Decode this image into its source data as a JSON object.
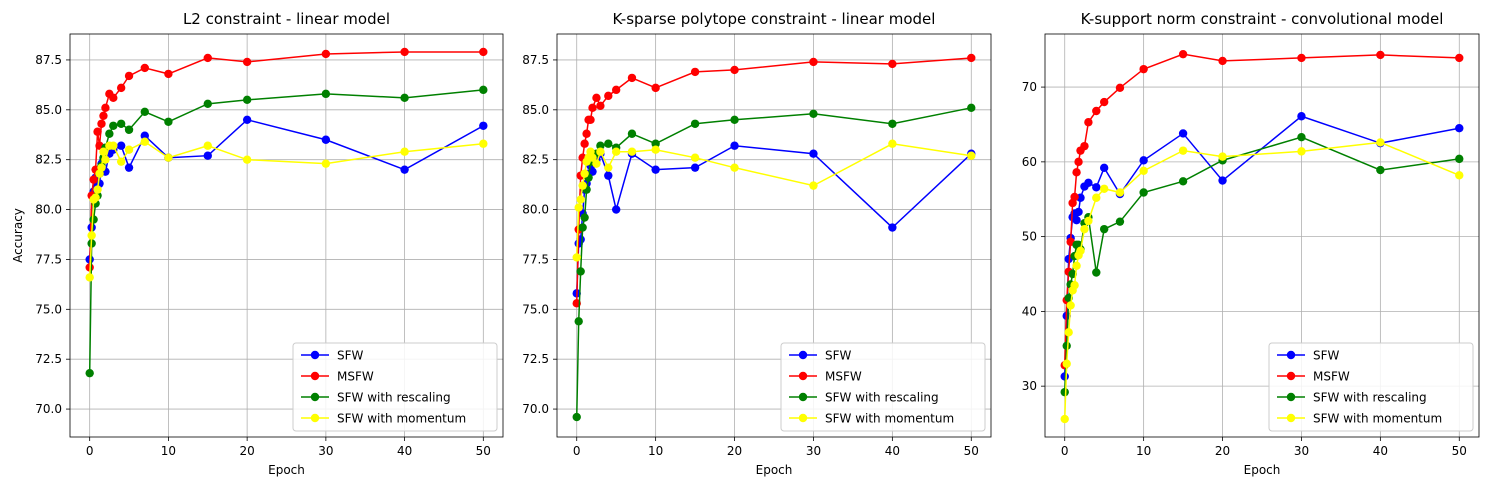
{
  "colors": {
    "SFW": "#0000ff",
    "MSFW": "#ff0000",
    "SFW with rescaling": "#008000",
    "SFW with momentum": "#ffff00",
    "grid": "#b0b0b0"
  },
  "chart_data": [
    {
      "type": "line",
      "title": "L2 constraint - linear model",
      "xlabel": "Epoch",
      "ylabel": "Accuracy",
      "xlim": [
        -2.5,
        52.5
      ],
      "ylim": [
        68.6,
        88.8
      ],
      "xticks": [
        0,
        10,
        20,
        30,
        40,
        50
      ],
      "yticks": [
        70.0,
        72.5,
        75.0,
        77.5,
        80.0,
        82.5,
        85.0,
        87.5
      ],
      "grid": true,
      "legend": "lower-right",
      "series": [
        {
          "name": "SFW",
          "points": [
            [
              0,
              77.5
            ],
            [
              0.25,
              79.1
            ],
            [
              0.5,
              80.9
            ],
            [
              0.75,
              81.6
            ],
            [
              1,
              81.2
            ],
            [
              1.25,
              81.3
            ],
            [
              1.5,
              82.3
            ],
            [
              1.75,
              82.5
            ],
            [
              2,
              81.9
            ],
            [
              2.5,
              82.8
            ],
            [
              3,
              83.0
            ],
            [
              4,
              83.2
            ],
            [
              5,
              82.1
            ],
            [
              7,
              83.7
            ],
            [
              10,
              82.6
            ],
            [
              15,
              82.7
            ],
            [
              20,
              84.5
            ],
            [
              30,
              83.5
            ],
            [
              40,
              82.0
            ],
            [
              50,
              84.2
            ]
          ]
        },
        {
          "name": "MSFW",
          "points": [
            [
              0,
              77.1
            ],
            [
              0.25,
              80.7
            ],
            [
              0.5,
              81.5
            ],
            [
              0.75,
              82.0
            ],
            [
              1,
              83.9
            ],
            [
              1.25,
              83.2
            ],
            [
              1.5,
              84.3
            ],
            [
              1.75,
              84.7
            ],
            [
              2,
              85.1
            ],
            [
              2.5,
              85.8
            ],
            [
              3,
              85.6
            ],
            [
              4,
              86.1
            ],
            [
              5,
              86.7
            ],
            [
              7,
              87.1
            ],
            [
              10,
              86.8
            ],
            [
              15,
              87.6
            ],
            [
              20,
              87.4
            ],
            [
              30,
              87.8
            ],
            [
              40,
              87.9
            ],
            [
              50,
              87.9
            ]
          ]
        },
        {
          "name": "SFW with rescaling",
          "points": [
            [
              0,
              71.8
            ],
            [
              0.25,
              78.3
            ],
            [
              0.5,
              79.5
            ],
            [
              0.75,
              80.3
            ],
            [
              1,
              80.7
            ],
            [
              1.25,
              81.8
            ],
            [
              1.5,
              82.2
            ],
            [
              1.75,
              82.6
            ],
            [
              2,
              83.1
            ],
            [
              2.5,
              83.8
            ],
            [
              3,
              84.2
            ],
            [
              4,
              84.3
            ],
            [
              5,
              84.0
            ],
            [
              7,
              84.9
            ],
            [
              10,
              84.4
            ],
            [
              15,
              85.3
            ],
            [
              20,
              85.5
            ],
            [
              30,
              85.8
            ],
            [
              40,
              85.6
            ],
            [
              50,
              86.0
            ]
          ]
        },
        {
          "name": "SFW with momentum",
          "points": [
            [
              0,
              76.6
            ],
            [
              0.25,
              78.7
            ],
            [
              0.5,
              80.5
            ],
            [
              0.75,
              80.6
            ],
            [
              1,
              81.0
            ],
            [
              1.25,
              81.8
            ],
            [
              1.5,
              82.1
            ],
            [
              1.75,
              82.9
            ],
            [
              2,
              82.5
            ],
            [
              2.5,
              83.2
            ],
            [
              3,
              83.2
            ],
            [
              4,
              82.4
            ],
            [
              5,
              83.0
            ],
            [
              7,
              83.4
            ],
            [
              10,
              82.6
            ],
            [
              15,
              83.2
            ],
            [
              20,
              82.5
            ],
            [
              30,
              82.3
            ],
            [
              40,
              82.9
            ],
            [
              50,
              83.3
            ]
          ]
        }
      ]
    },
    {
      "type": "line",
      "title": "K-sparse polytope constraint - linear model",
      "xlabel": "Epoch",
      "ylabel": "",
      "xlim": [
        -2.5,
        52.5
      ],
      "ylim": [
        68.6,
        88.8
      ],
      "xticks": [
        0,
        10,
        20,
        30,
        40,
        50
      ],
      "yticks": [
        70.0,
        72.5,
        75.0,
        77.5,
        80.0,
        82.5,
        85.0,
        87.5
      ],
      "grid": true,
      "legend": "lower-right",
      "series": [
        {
          "name": "SFW",
          "points": [
            [
              0,
              75.8
            ],
            [
              0.25,
              78.3
            ],
            [
              0.5,
              78.5
            ],
            [
              0.75,
              79.8
            ],
            [
              1,
              81.0
            ],
            [
              1.25,
              81.3
            ],
            [
              1.5,
              81.8
            ],
            [
              1.75,
              82.2
            ],
            [
              2,
              81.9
            ],
            [
              2.5,
              82.5
            ],
            [
              3,
              82.8
            ],
            [
              4,
              81.7
            ],
            [
              5,
              80.0
            ],
            [
              7,
              82.8
            ],
            [
              10,
              82.0
            ],
            [
              15,
              82.1
            ],
            [
              20,
              83.2
            ],
            [
              30,
              82.8
            ],
            [
              40,
              79.1
            ],
            [
              50,
              82.8
            ]
          ]
        },
        {
          "name": "MSFW",
          "points": [
            [
              0,
              75.3
            ],
            [
              0.25,
              79.0
            ],
            [
              0.5,
              81.7
            ],
            [
              0.75,
              82.6
            ],
            [
              1,
              83.3
            ],
            [
              1.25,
              83.8
            ],
            [
              1.5,
              84.5
            ],
            [
              1.75,
              84.5
            ],
            [
              2,
              85.1
            ],
            [
              2.5,
              85.6
            ],
            [
              3,
              85.2
            ],
            [
              4,
              85.7
            ],
            [
              5,
              86.0
            ],
            [
              7,
              86.6
            ],
            [
              10,
              86.1
            ],
            [
              15,
              86.9
            ],
            [
              20,
              87.0
            ],
            [
              30,
              87.4
            ],
            [
              40,
              87.3
            ],
            [
              50,
              87.6
            ]
          ]
        },
        {
          "name": "SFW with rescaling",
          "points": [
            [
              0,
              69.6
            ],
            [
              0.25,
              74.4
            ],
            [
              0.5,
              76.9
            ],
            [
              0.75,
              79.1
            ],
            [
              1,
              79.6
            ],
            [
              1.25,
              81.0
            ],
            [
              1.5,
              81.6
            ],
            [
              1.75,
              82.4
            ],
            [
              2,
              82.4
            ],
            [
              2.5,
              82.8
            ],
            [
              3,
              83.2
            ],
            [
              4,
              83.3
            ],
            [
              5,
              83.1
            ],
            [
              7,
              83.8
            ],
            [
              10,
              83.3
            ],
            [
              15,
              84.3
            ],
            [
              20,
              84.5
            ],
            [
              30,
              84.8
            ],
            [
              40,
              84.3
            ],
            [
              50,
              85.1
            ]
          ]
        },
        {
          "name": "SFW with momentum",
          "points": [
            [
              0,
              77.6
            ],
            [
              0.25,
              80.1
            ],
            [
              0.5,
              80.5
            ],
            [
              0.75,
              81.2
            ],
            [
              1,
              81.8
            ],
            [
              1.25,
              82.4
            ],
            [
              1.5,
              82.6
            ],
            [
              1.75,
              82.9
            ],
            [
              2,
              82.6
            ],
            [
              2.5,
              82.3
            ],
            [
              3,
              82.9
            ],
            [
              4,
              82.1
            ],
            [
              5,
              82.9
            ],
            [
              7,
              82.9
            ],
            [
              10,
              83.0
            ],
            [
              15,
              82.6
            ],
            [
              20,
              82.1
            ],
            [
              30,
              81.2
            ],
            [
              40,
              83.3
            ],
            [
              50,
              82.7
            ]
          ]
        }
      ]
    },
    {
      "type": "line",
      "title": "K-support norm constraint - convolutional model",
      "xlabel": "Epoch",
      "ylabel": "",
      "xlim": [
        -2.5,
        52.5
      ],
      "ylim": [
        23.2,
        77.1
      ],
      "xticks": [
        0,
        10,
        20,
        30,
        40,
        50
      ],
      "yticks": [
        30,
        40,
        50,
        60,
        70
      ],
      "grid": true,
      "legend": "lower-right",
      "series": [
        {
          "name": "SFW",
          "points": [
            [
              0,
              31.3
            ],
            [
              0.25,
              39.4
            ],
            [
              0.5,
              47.0
            ],
            [
              0.75,
              49.8
            ],
            [
              1,
              52.6
            ],
            [
              1.25,
              53.1
            ],
            [
              1.5,
              52.2
            ],
            [
              1.75,
              53.3
            ],
            [
              2,
              55.2
            ],
            [
              2.5,
              56.7
            ],
            [
              3,
              57.2
            ],
            [
              4,
              56.6
            ],
            [
              5,
              59.2
            ],
            [
              7,
              55.7
            ],
            [
              10,
              60.2
            ],
            [
              15,
              63.8
            ],
            [
              20,
              57.5
            ],
            [
              30,
              66.1
            ],
            [
              40,
              62.5
            ],
            [
              50,
              64.5
            ]
          ]
        },
        {
          "name": "MSFW",
          "points": [
            [
              0,
              32.8
            ],
            [
              0.25,
              41.5
            ],
            [
              0.5,
              45.3
            ],
            [
              0.75,
              49.3
            ],
            [
              1,
              54.5
            ],
            [
              1.25,
              55.3
            ],
            [
              1.5,
              58.6
            ],
            [
              1.75,
              60.0
            ],
            [
              2,
              61.5
            ],
            [
              2.5,
              62.1
            ],
            [
              3,
              65.3
            ],
            [
              4,
              66.8
            ],
            [
              5,
              68.0
            ],
            [
              7,
              69.9
            ],
            [
              10,
              72.4
            ],
            [
              15,
              74.4
            ],
            [
              20,
              73.5
            ],
            [
              30,
              73.9
            ],
            [
              40,
              74.3
            ],
            [
              50,
              73.9
            ]
          ]
        },
        {
          "name": "SFW with rescaling",
          "points": [
            [
              0,
              29.2
            ],
            [
              0.25,
              35.4
            ],
            [
              0.5,
              41.8
            ],
            [
              0.75,
              43.6
            ],
            [
              1,
              45.0
            ],
            [
              1.25,
              47.4
            ],
            [
              1.5,
              48.9
            ],
            [
              1.75,
              48.9
            ],
            [
              2,
              48.3
            ],
            [
              2.5,
              51.8
            ],
            [
              3,
              52.6
            ],
            [
              4,
              45.2
            ],
            [
              5,
              51.0
            ],
            [
              7,
              52.0
            ],
            [
              10,
              55.9
            ],
            [
              15,
              57.4
            ],
            [
              20,
              60.2
            ],
            [
              30,
              63.3
            ],
            [
              40,
              58.9
            ],
            [
              50,
              60.4
            ]
          ]
        },
        {
          "name": "SFW with momentum",
          "points": [
            [
              0,
              25.6
            ],
            [
              0.25,
              33.0
            ],
            [
              0.5,
              37.2
            ],
            [
              0.75,
              40.8
            ],
            [
              1,
              42.8
            ],
            [
              1.25,
              43.5
            ],
            [
              1.5,
              46.1
            ],
            [
              1.75,
              47.5
            ],
            [
              2,
              48.1
            ],
            [
              2.5,
              51.0
            ],
            [
              3,
              52.1
            ],
            [
              4,
              55.2
            ],
            [
              5,
              56.4
            ],
            [
              7,
              55.9
            ],
            [
              10,
              58.8
            ],
            [
              15,
              61.5
            ],
            [
              20,
              60.7
            ],
            [
              30,
              61.4
            ],
            [
              40,
              62.6
            ],
            [
              50,
              58.2
            ]
          ]
        }
      ]
    }
  ]
}
